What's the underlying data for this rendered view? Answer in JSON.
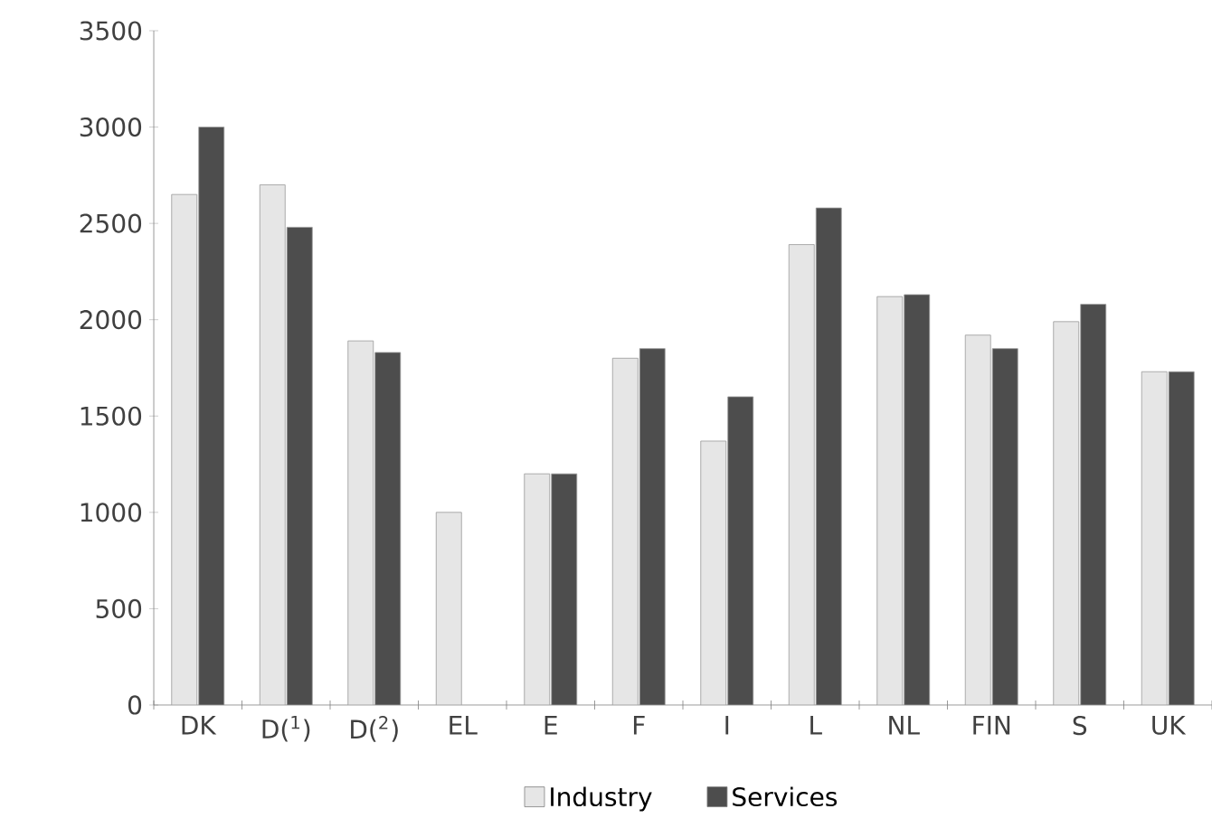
{
  "chart_data": {
    "type": "bar",
    "categories": [
      "DK",
      "D($^{1}$)",
      "D($^{2}$)",
      "EL",
      "E",
      "F",
      "I",
      "L",
      "NL",
      "FIN",
      "S",
      "UK"
    ],
    "series": [
      {
        "name": "Industry",
        "color": "#e6e6e6",
        "values": [
          2650,
          2700,
          1890,
          1000,
          1200,
          1800,
          1370,
          2390,
          2120,
          1920,
          1990,
          1730
        ]
      },
      {
        "name": "Services",
        "color": "#4d4d4d",
        "values": [
          3000,
          2480,
          1830,
          null,
          1200,
          1850,
          1600,
          2580,
          2130,
          1850,
          2080,
          1730
        ]
      }
    ],
    "ylim": [
      0,
      3500
    ],
    "yticks": [
      0,
      500,
      1000,
      1500,
      2000,
      2500,
      3000,
      3500
    ],
    "grid": false,
    "legend": "bottom"
  }
}
